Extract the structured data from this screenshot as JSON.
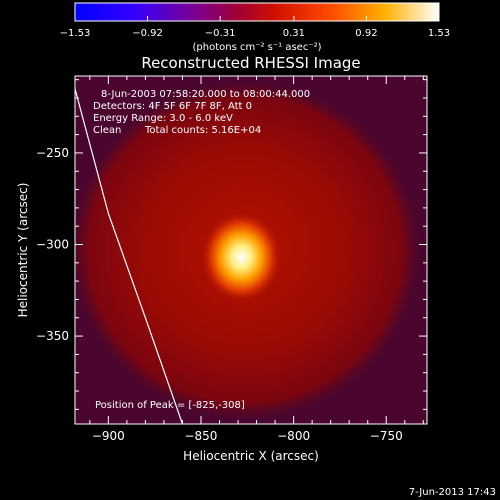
{
  "chart_data": {
    "type": "heatmap",
    "title": "Reconstructed RHESSI Image",
    "xlabel": "Heliocentric X (arcsec)",
    "ylabel": "Heliocentric Y (arcsec)",
    "xlim": [
      -918,
      -728
    ],
    "ylim": [
      -398,
      -208
    ],
    "x_ticks": [
      -900,
      -850,
      -800,
      -750
    ],
    "y_ticks": [
      -250,
      -300,
      -350
    ],
    "x_tick_labels": [
      "−900",
      "−850",
      "−800",
      "−750"
    ],
    "y_tick_labels": [
      "−250",
      "−300",
      "−350"
    ],
    "colorbar": {
      "ticks": [
        -1.53,
        -0.92,
        -0.31,
        0.31,
        0.92,
        1.53
      ],
      "tick_labels": [
        "−1.53",
        "−0.92",
        "−0.31",
        "0.31",
        "0.92",
        "1.53"
      ],
      "unit_label": "(photons cm⁻² s⁻¹ asec⁻²)",
      "colors": [
        "#0000ff",
        "#6600aa",
        "#aa0030",
        "#dd2200",
        "#ff7700",
        "#ffdd00",
        "#ffffff"
      ]
    },
    "peak": {
      "x": -825,
      "y": -308,
      "value": 1.53
    },
    "annotations": {
      "time_range": "8-Jun-2003 07:58:20.000 to 08:00:44.000",
      "detectors": "Detectors: 4F 5F 6F 7F 8F, Att 0",
      "energy": "Energy Range: 3.0 - 6.0 keV",
      "clean": "Clean",
      "counts": "Total counts: 5.16E+04",
      "peak_position": "Position of Peak = [-825,-308]"
    },
    "limb_curve": [
      [
        -918,
        -215
      ],
      [
        -900,
        -283
      ],
      [
        -880,
        -340
      ],
      [
        -860,
        -398
      ]
    ]
  },
  "footer": {
    "date": "7-Jun-2013 17:43"
  }
}
